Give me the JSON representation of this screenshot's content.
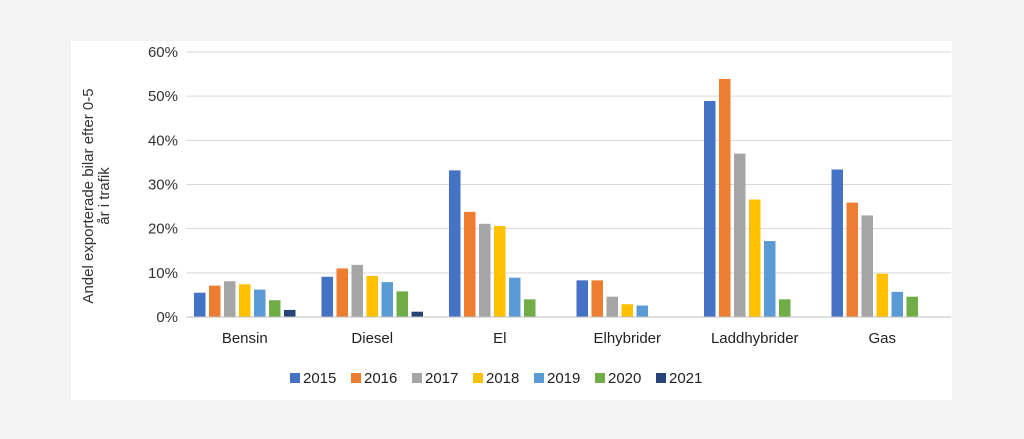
{
  "chart_data": {
    "type": "bar",
    "title": "",
    "xlabel": "",
    "ylabel_lines": [
      "Andel exporterade bilar efter 0-5",
      "år i trafik"
    ],
    "ylim": [
      0,
      60
    ],
    "yticks": [
      0,
      10,
      20,
      30,
      40,
      50,
      60
    ],
    "ytick_labels": [
      "0%",
      "10%",
      "20%",
      "30%",
      "40%",
      "50%",
      "60%"
    ],
    "grid": true,
    "legend_position": "bottom",
    "categories": [
      "Bensin",
      "Diesel",
      "El",
      "Elhybrider",
      "Laddhybrider",
      "Gas"
    ],
    "series": [
      {
        "name": "2015",
        "color": "#4472c4",
        "values": [
          5.5,
          9.1,
          33.2,
          8.3,
          48.9,
          33.4
        ]
      },
      {
        "name": "2016",
        "color": "#ed7d31",
        "values": [
          7.1,
          11.0,
          23.8,
          8.3,
          53.9,
          25.9
        ]
      },
      {
        "name": "2017",
        "color": "#a5a5a5",
        "values": [
          8.1,
          11.8,
          21.1,
          4.6,
          37.0,
          23.0
        ]
      },
      {
        "name": "2018",
        "color": "#ffc000",
        "values": [
          7.4,
          9.3,
          20.6,
          2.9,
          26.6,
          9.8
        ]
      },
      {
        "name": "2019",
        "color": "#5b9bd5",
        "values": [
          6.2,
          7.9,
          8.9,
          2.6,
          17.2,
          5.7
        ]
      },
      {
        "name": "2020",
        "color": "#70ad47",
        "values": [
          3.8,
          5.8,
          4.0,
          0,
          4.0,
          4.6
        ]
      },
      {
        "name": "2021",
        "color": "#264478",
        "values": [
          1.6,
          1.2,
          0,
          0,
          0,
          0
        ]
      }
    ]
  }
}
